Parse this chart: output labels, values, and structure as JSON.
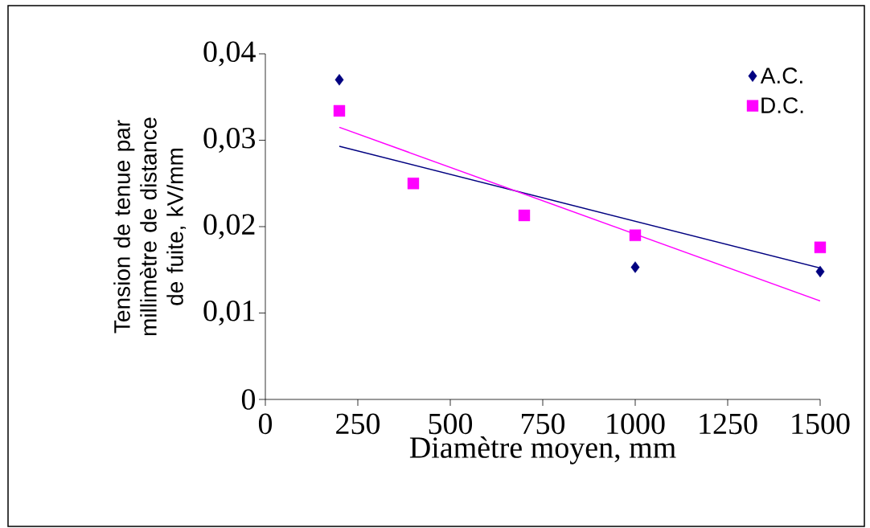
{
  "chart_data": {
    "type": "scatter",
    "xlabel": "Diamètre moyen, mm",
    "ylabel": "Tension de tenue par millimètre de distance de fuite, kV/mm",
    "xlim": [
      0,
      1500
    ],
    "ylim": [
      0,
      0.04
    ],
    "xticks": [
      0,
      250,
      500,
      750,
      1000,
      1250,
      1500
    ],
    "yticks": [
      {
        "value": 0,
        "label": "0"
      },
      {
        "value": 0.01,
        "label": "0,01"
      },
      {
        "value": 0.02,
        "label": "0,02"
      },
      {
        "value": 0.03,
        "label": "0,03"
      },
      {
        "value": 0.04,
        "label": "0,04"
      }
    ],
    "grid": false,
    "legend": "top right",
    "series": [
      {
        "name": "A.C.",
        "color": "#000080",
        "marker": "diamond",
        "x": [
          200,
          400,
          700,
          1000,
          1500
        ],
        "values": [
          0.037,
          null,
          null,
          0.0153,
          0.0148
        ]
      },
      {
        "name": "D.C.",
        "color": "#ff00ff",
        "marker": "square",
        "x": [
          200,
          400,
          700,
          1000,
          1500
        ],
        "values": [
          0.0334,
          0.025,
          0.0213,
          0.019,
          0.0176
        ]
      },
      {
        "type": "line",
        "color": "#000080",
        "marker": "none",
        "x": [
          200,
          1500
        ],
        "values": [
          0.0293,
          0.0152
        ]
      },
      {
        "type": "line",
        "color": "#ff00ff",
        "marker": "none",
        "x": [
          200,
          1500
        ],
        "values": [
          0.0315,
          0.0114
        ]
      }
    ]
  }
}
